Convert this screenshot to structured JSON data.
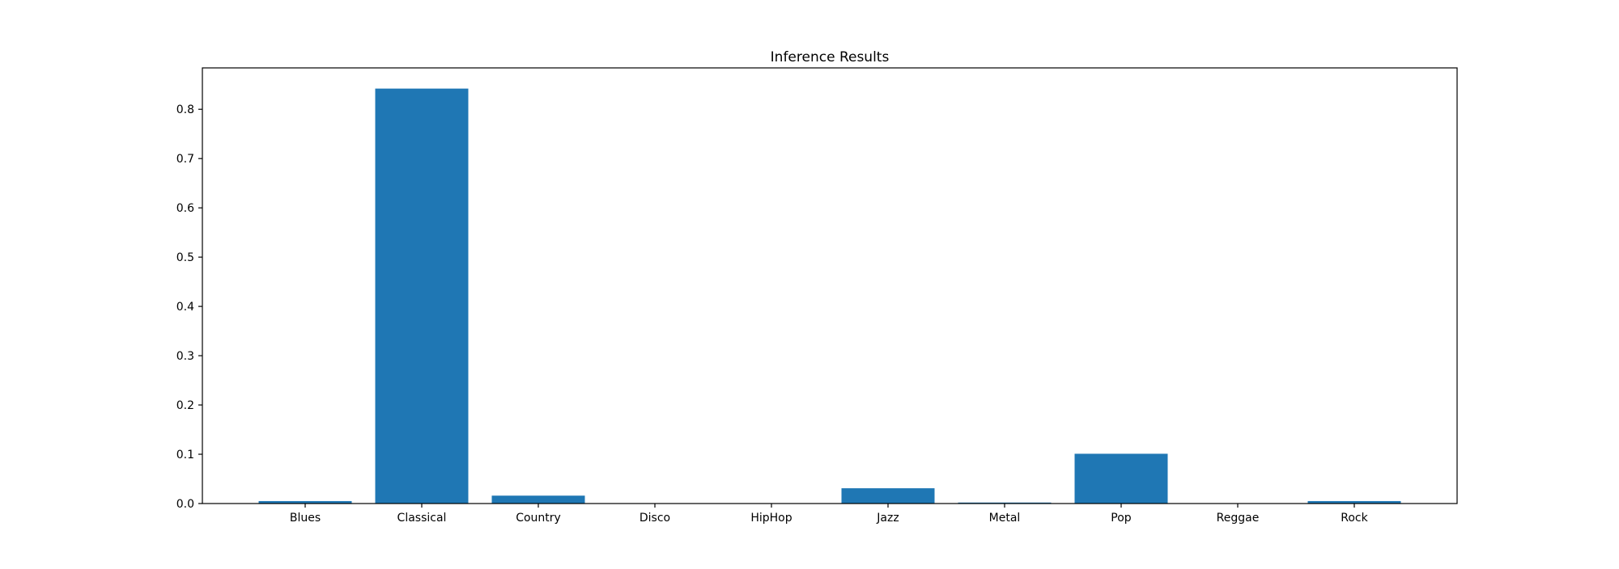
{
  "chart_data": {
    "type": "bar",
    "title": "Inference Results",
    "xlabel": "",
    "ylabel": "",
    "categories": [
      "Blues",
      "Classical",
      "Country",
      "Disco",
      "HipHop",
      "Jazz",
      "Metal",
      "Pop",
      "Reggae",
      "Rock"
    ],
    "values": [
      0.005,
      0.842,
      0.016,
      0.0,
      0.0,
      0.031,
      0.002,
      0.101,
      0.0,
      0.005
    ],
    "ylim": [
      0,
      0.884
    ],
    "yticks": [
      0.0,
      0.1,
      0.2,
      0.3,
      0.4,
      0.5,
      0.6,
      0.7,
      0.8
    ],
    "ytick_labels": [
      "0.0",
      "0.1",
      "0.2",
      "0.3",
      "0.4",
      "0.5",
      "0.6",
      "0.7",
      "0.8"
    ],
    "grid": false,
    "legend": "none",
    "bar_color": "#1f77b4"
  }
}
